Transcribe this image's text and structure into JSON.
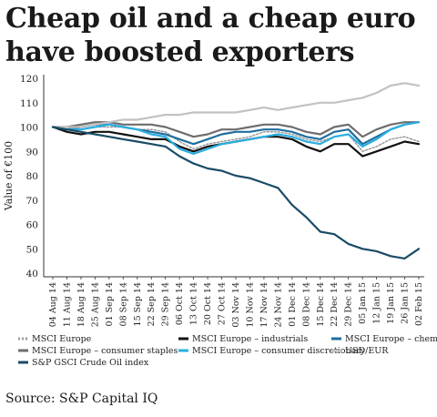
{
  "title": "Cheap oil and a cheap euro have boosted exporters",
  "source": "Source: S&P Capital IQ",
  "chart_data": {
    "type": "line",
    "title": "Cheap oil and a cheap euro have boosted exporters",
    "ylabel": "Value of €100",
    "xlabel": "",
    "ylim": [
      40,
      120
    ],
    "yticks": [
      40,
      50,
      60,
      70,
      80,
      90,
      100,
      110,
      120
    ],
    "grid": false,
    "legend_position": "bottom",
    "x": [
      "04 Aug 14",
      "11 Aug 14",
      "18 Aug 14",
      "25 Aug 14",
      "01 Sep 14",
      "08 Sep 14",
      "15 Sep 14",
      "22 Sep 14",
      "29 Sep 14",
      "06 Oct 14",
      "13 Oct 14",
      "20 Oct 14",
      "27 Oct 14",
      "03 Nov 14",
      "10 Nov 14",
      "17 Nov 14",
      "24 Nov 14",
      "01 Dec 14",
      "08 Dec 14",
      "15 Dec 14",
      "22 Dec 14",
      "29 Dec 14",
      "05 Jan 15",
      "12 Jan 15",
      "19 Jan 15",
      "26 Jan 15",
      "02 Feb 15"
    ],
    "series": [
      {
        "name": "MSCI Europe",
        "color": "#9a9a9a",
        "dash": "2,2",
        "width": 1.5,
        "values": [
          100,
          99,
          99,
          100,
          100,
          100,
          99,
          99,
          98,
          94,
          91,
          93,
          94,
          95,
          96,
          98,
          98,
          97,
          95,
          94,
          96,
          97,
          90,
          92,
          95,
          96,
          94
        ]
      },
      {
        "name": "MSCI Europe – industrials",
        "color": "#111111",
        "dash": "",
        "width": 2.2,
        "values": [
          100,
          98,
          97,
          98,
          98,
          97,
          96,
          95,
          95,
          92,
          90,
          92,
          93,
          94,
          95,
          96,
          96,
          95,
          92,
          90,
          93,
          93,
          88,
          90,
          92,
          94,
          93
        ]
      },
      {
        "name": "MSCI Europe – chemicals",
        "color": "#1f6e9c",
        "dash": "",
        "width": 2.2,
        "values": [
          100,
          99,
          100,
          101,
          101,
          100,
          99,
          98,
          97,
          95,
          93,
          95,
          97,
          98,
          98,
          99,
          99,
          98,
          96,
          95,
          98,
          99,
          93,
          96,
          99,
          101,
          102
        ]
      },
      {
        "name": "MSCI Europe – consumer staples",
        "color": "#6d6d6d",
        "dash": "",
        "width": 2.2,
        "values": [
          100,
          100,
          101,
          102,
          102,
          101,
          101,
          101,
          100,
          98,
          96,
          97,
          99,
          99,
          100,
          101,
          101,
          100,
          98,
          97,
          100,
          101,
          96,
          99,
          101,
          102,
          102
        ]
      },
      {
        "name": "MSCI Europe – consumer discretionary",
        "color": "#29aee0",
        "dash": "",
        "width": 2.2,
        "values": [
          100,
          99,
          99,
          100,
          101,
          100,
          99,
          97,
          96,
          91,
          89,
          91,
          93,
          94,
          95,
          96,
          97,
          96,
          94,
          93,
          96,
          97,
          92,
          95,
          99,
          101,
          102
        ]
      },
      {
        "name": "USD/EUR",
        "color": "#c2c2c2",
        "dash": "",
        "width": 2.2,
        "values": [
          100,
          100,
          100,
          101,
          102,
          103,
          103,
          104,
          105,
          105,
          106,
          106,
          106,
          106,
          107,
          108,
          107,
          108,
          109,
          110,
          110,
          111,
          112,
          114,
          117,
          118,
          117
        ]
      },
      {
        "name": "S&P GSCI Crude Oil index",
        "color": "#1a4b66",
        "dash": "",
        "width": 2.2,
        "values": [
          100,
          99,
          98,
          97,
          96,
          95,
          94,
          93,
          92,
          88,
          85,
          83,
          82,
          80,
          79,
          77,
          75,
          68,
          63,
          57,
          56,
          52,
          50,
          49,
          47,
          46,
          50
        ]
      }
    ]
  }
}
